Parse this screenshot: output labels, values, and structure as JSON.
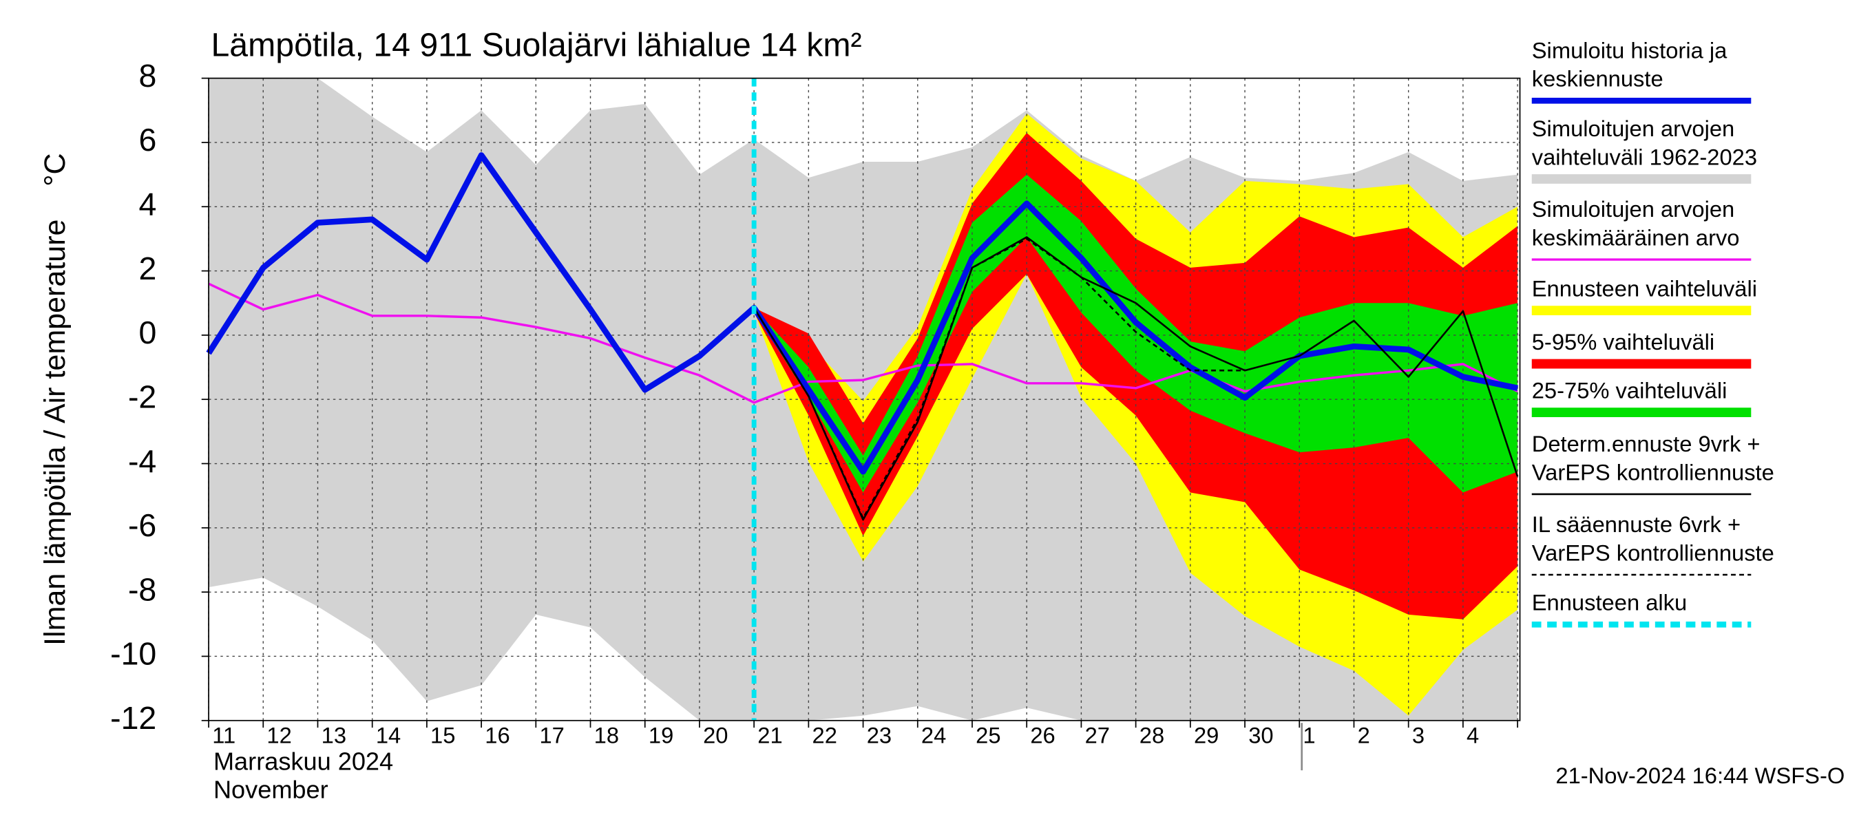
{
  "chart_data": {
    "type": "band-line",
    "title": "Lämpötila, 14 911 Suolajärvi lähialue 14 km²",
    "y_label": "Ilman lämpötila / Air temperature    °C",
    "x_label_lines": [
      "Marraskuu 2024",
      "November"
    ],
    "footer": "21-Nov-2024 16:44 WSFS-O",
    "categories": [
      "11",
      "12",
      "13",
      "14",
      "15",
      "16",
      "17",
      "18",
      "19",
      "20",
      "21",
      "22",
      "23",
      "24",
      "25",
      "26",
      "27",
      "28",
      "29",
      "30",
      "1",
      "2",
      "3",
      "4",
      null
    ],
    "ylim": [
      -12,
      8
    ],
    "yticks": [
      -12,
      -10,
      -8,
      -6,
      -4,
      -2,
      0,
      2,
      4,
      6,
      8
    ],
    "grid": true,
    "series": [
      {
        "name": [
          "Simuloitu historia ja",
          "keskiennuste"
        ],
        "kind": "line",
        "color": "#0010e8",
        "width": 5,
        "values": [
          -0.56,
          2.1,
          3.5,
          3.6,
          2.35,
          5.6,
          3.2,
          0.8,
          -1.7,
          -0.65,
          0.85,
          -1.7,
          -4.25,
          -1.4,
          2.4,
          4.1,
          2.4,
          0.4,
          -1.0,
          -1.95,
          -0.65,
          -0.35,
          -0.45,
          -1.3,
          -1.65
        ]
      },
      {
        "name": [
          "Simuloitujen arvojen",
          "vaihteluväli 1962-2023"
        ],
        "kind": "band",
        "color": "#d3d3d3",
        "upper": [
          8,
          8,
          8,
          6.8,
          5.7,
          7.0,
          5.3,
          7.0,
          7.2,
          5.0,
          6.1,
          4.9,
          5.4,
          5.4,
          5.85,
          7.0,
          5.6,
          4.8,
          5.55,
          4.9,
          4.8,
          5.05,
          5.7,
          4.8,
          5.0
        ],
        "lower": [
          -7.85,
          -7.55,
          -8.45,
          -9.5,
          -11.4,
          -10.9,
          -8.7,
          -9.1,
          -10.65,
          -12,
          -12,
          -12,
          -11.85,
          -11.55,
          -12,
          -11.6,
          -12,
          -12,
          -12,
          -12,
          -12,
          -12,
          -12,
          -12,
          -12
        ]
      },
      {
        "name": [
          "Simuloitujen arvojen",
          "keskimääräinen arvo"
        ],
        "kind": "line",
        "color": "#f010f0",
        "width": 2,
        "values": [
          1.6,
          0.8,
          1.25,
          0.6,
          0.6,
          0.55,
          0.25,
          -0.1,
          -0.7,
          -1.25,
          -2.1,
          -1.45,
          -1.4,
          -0.95,
          -0.9,
          -1.5,
          -1.5,
          -1.65,
          -1.1,
          -1.75,
          -1.45,
          -1.25,
          -1.1,
          -0.9,
          -1.75
        ]
      },
      {
        "name": [
          "Ennusteen vaihteluväli"
        ],
        "kind": "band",
        "color": "#ffff00",
        "upper": [
          null,
          null,
          null,
          null,
          null,
          null,
          null,
          null,
          null,
          null,
          0.9,
          -0.25,
          -2.05,
          0.25,
          4.55,
          6.9,
          5.5,
          4.8,
          3.2,
          4.8,
          4.7,
          4.55,
          4.7,
          3.05,
          4.0
        ],
        "lower": [
          null,
          null,
          null,
          null,
          null,
          null,
          null,
          null,
          null,
          null,
          0.75,
          -3.95,
          -7.05,
          -4.7,
          -1.35,
          1.9,
          -1.95,
          -4.0,
          -7.4,
          -8.75,
          -9.7,
          -10.45,
          -11.85,
          -9.8,
          -8.55
        ]
      },
      {
        "name": [
          "5-95% vaihteluväli"
        ],
        "kind": "band",
        "color": "#ff0000",
        "upper": [
          null,
          null,
          null,
          null,
          null,
          null,
          null,
          null,
          null,
          null,
          0.85,
          0.05,
          -2.75,
          -0.1,
          4.1,
          6.3,
          4.8,
          3.0,
          2.1,
          2.25,
          3.7,
          3.05,
          3.35,
          2.1,
          3.4
        ],
        "lower": [
          null,
          null,
          null,
          null,
          null,
          null,
          null,
          null,
          null,
          null,
          0.7,
          -2.5,
          -6.25,
          -3.15,
          0.2,
          1.9,
          -1.0,
          -2.5,
          -4.9,
          -5.2,
          -7.3,
          -7.95,
          -8.7,
          -8.85,
          -7.2
        ]
      },
      {
        "name": [
          "25-75% vaihteluväli"
        ],
        "kind": "band",
        "color": "#00e000",
        "upper": [
          null,
          null,
          null,
          null,
          null,
          null,
          null,
          null,
          null,
          null,
          0.85,
          -1.0,
          -3.75,
          -0.65,
          3.5,
          5.0,
          3.55,
          1.45,
          -0.2,
          -0.5,
          0.55,
          1.0,
          1.0,
          0.6,
          1.0
        ],
        "lower": [
          null,
          null,
          null,
          null,
          null,
          null,
          null,
          null,
          null,
          null,
          0.75,
          -1.95,
          -4.9,
          -2.1,
          1.35,
          3.05,
          0.7,
          -1.1,
          -2.35,
          -3.05,
          -3.65,
          -3.5,
          -3.2,
          -4.9,
          -4.25
        ]
      },
      {
        "name": [
          "Determ.ennuste 9vrk +",
          "VarEPS kontrolliennuste"
        ],
        "kind": "line",
        "color": "#000000",
        "width": 1.5,
        "values": [
          null,
          null,
          null,
          null,
          null,
          null,
          null,
          null,
          null,
          null,
          0.85,
          -1.9,
          -5.75,
          -2.7,
          2.1,
          3.05,
          1.8,
          1.0,
          -0.35,
          -1.1,
          -0.65,
          0.45,
          -1.3,
          0.75,
          -4.4
        ]
      },
      {
        "name": [
          "IL sääennuste 6vrk  +",
          "  VarEPS kontrolliennuste"
        ],
        "kind": "line",
        "color": "#000000",
        "width": 1.5,
        "dashed": true,
        "values": [
          null,
          null,
          null,
          null,
          null,
          null,
          null,
          null,
          null,
          null,
          0.85,
          -1.9,
          -5.7,
          -2.6,
          2.1,
          3.0,
          1.8,
          0.1,
          -1.1,
          -1.1,
          null,
          null,
          null,
          null,
          null
        ]
      }
    ],
    "forecast_start": {
      "name": [
        "Ennusteen alku"
      ],
      "color": "#00e5f0",
      "category": "21"
    }
  }
}
